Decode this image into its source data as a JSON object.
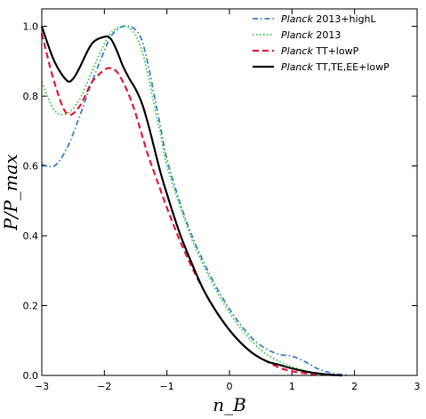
{
  "chart_data": {
    "type": "line",
    "xlabel": "n_B",
    "ylabel": "P/P_max",
    "xlim": [
      -3,
      3
    ],
    "ylim": [
      0,
      1.05
    ],
    "x_ticks": [
      -3,
      -2,
      -1,
      0,
      1,
      2,
      3
    ],
    "y_ticks": [
      0.0,
      0.2,
      0.4,
      0.6,
      0.8,
      1.0
    ],
    "x_tick_labels": [
      "−3",
      "−2",
      "−1",
      "0",
      "1",
      "2",
      "3"
    ],
    "y_tick_labels": [
      "0.0",
      "0.2",
      "0.4",
      "0.6",
      "0.8",
      "1.0"
    ],
    "grid": false,
    "legend_position": "top-right",
    "series": [
      {
        "name_em": "Planck",
        "name_rest": " 2013+highL",
        "color": "#3b7fd4",
        "style": "dashdot",
        "x": [
          -3.0,
          -2.8,
          -2.6,
          -2.4,
          -2.2,
          -2.0,
          -1.9,
          -1.8,
          -1.7,
          -1.6,
          -1.5,
          -1.4,
          -1.3,
          -1.2,
          -1.1,
          -1.0,
          -0.8,
          -0.6,
          -0.4,
          -0.2,
          0.0,
          0.2,
          0.4,
          0.6,
          0.8,
          1.0,
          1.2,
          1.4,
          1.6,
          1.8,
          1.9
        ],
        "y": [
          0.605,
          0.6,
          0.65,
          0.74,
          0.84,
          0.93,
          0.97,
          0.99,
          1.0,
          1.0,
          0.99,
          0.96,
          0.89,
          0.8,
          0.71,
          0.62,
          0.5,
          0.4,
          0.32,
          0.25,
          0.19,
          0.14,
          0.1,
          0.075,
          0.06,
          0.055,
          0.04,
          0.02,
          0.008,
          0.002,
          0.0
        ]
      },
      {
        "name_em": "Planck",
        "name_rest": " 2013",
        "color": "#2fd12f",
        "style": "dotted",
        "x": [
          -3.0,
          -2.8,
          -2.6,
          -2.4,
          -2.2,
          -2.0,
          -1.9,
          -1.8,
          -1.7,
          -1.6,
          -1.5,
          -1.4,
          -1.3,
          -1.2,
          -1.1,
          -1.0,
          -0.8,
          -0.6,
          -0.4,
          -0.2,
          0.0,
          0.2,
          0.4,
          0.6,
          0.8,
          1.0,
          1.2,
          1.4,
          1.6,
          1.8
        ],
        "y": [
          0.84,
          0.76,
          0.75,
          0.79,
          0.87,
          0.95,
          0.98,
          0.995,
          1.0,
          0.995,
          0.975,
          0.93,
          0.86,
          0.77,
          0.69,
          0.6,
          0.49,
          0.39,
          0.31,
          0.24,
          0.18,
          0.13,
          0.09,
          0.06,
          0.04,
          0.025,
          0.013,
          0.006,
          0.002,
          0.0
        ]
      },
      {
        "name_em": "Planck",
        "name_rest": " TT+lowP",
        "color": "#e8173b",
        "style": "dashed",
        "x": [
          -3.0,
          -2.8,
          -2.6,
          -2.4,
          -2.2,
          -2.0,
          -1.9,
          -1.8,
          -1.7,
          -1.6,
          -1.5,
          -1.4,
          -1.3,
          -1.2,
          -1.1,
          -1.0,
          -0.8,
          -0.6,
          -0.4,
          -0.2,
          0.0,
          0.2,
          0.4,
          0.6,
          0.8,
          1.0,
          1.2,
          1.4,
          1.6,
          1.8
        ],
        "y": [
          0.98,
          0.84,
          0.75,
          0.77,
          0.84,
          0.875,
          0.88,
          0.87,
          0.84,
          0.8,
          0.75,
          0.69,
          0.63,
          0.58,
          0.53,
          0.48,
          0.39,
          0.31,
          0.24,
          0.18,
          0.13,
          0.09,
          0.06,
          0.04,
          0.022,
          0.012,
          0.006,
          0.003,
          0.001,
          0.0
        ]
      },
      {
        "name_em": "Planck",
        "name_rest": " TT,TE,EE+lowP",
        "color": "#000000",
        "style": "solid",
        "x": [
          -3.0,
          -2.8,
          -2.6,
          -2.5,
          -2.4,
          -2.2,
          -2.0,
          -1.9,
          -1.8,
          -1.7,
          -1.6,
          -1.5,
          -1.4,
          -1.3,
          -1.2,
          -1.1,
          -1.0,
          -0.8,
          -0.6,
          -0.4,
          -0.2,
          0.0,
          0.2,
          0.4,
          0.6,
          0.8,
          1.0,
          1.2,
          1.4,
          1.6,
          1.8
        ],
        "y": [
          1.0,
          0.9,
          0.845,
          0.85,
          0.88,
          0.95,
          0.97,
          0.965,
          0.93,
          0.885,
          0.85,
          0.82,
          0.78,
          0.72,
          0.65,
          0.58,
          0.52,
          0.41,
          0.32,
          0.24,
          0.18,
          0.13,
          0.09,
          0.06,
          0.04,
          0.03,
          0.02,
          0.012,
          0.006,
          0.002,
          0.0
        ]
      }
    ]
  }
}
